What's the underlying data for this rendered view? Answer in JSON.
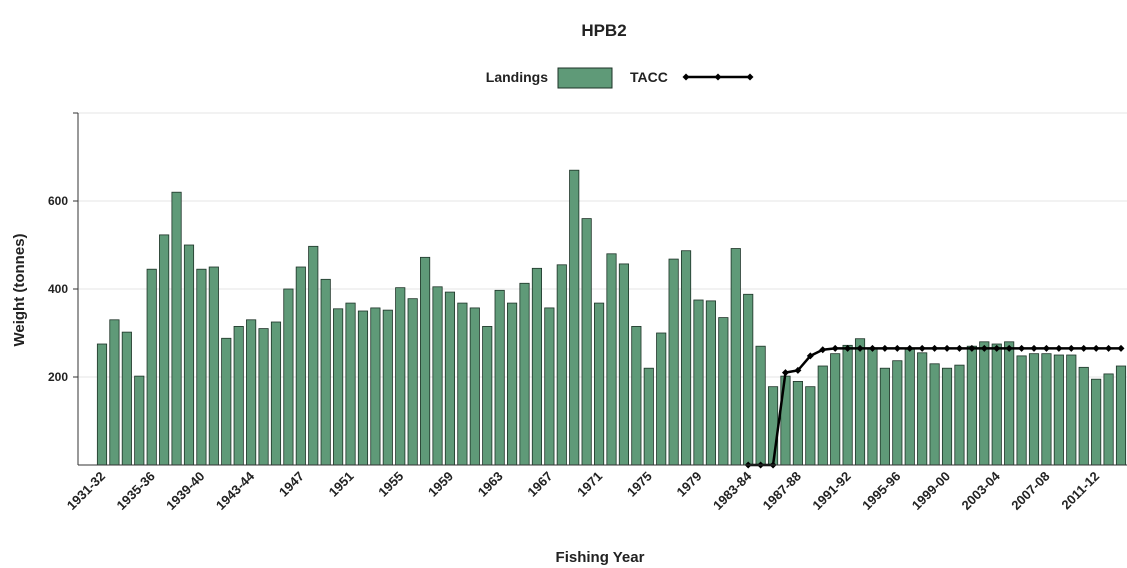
{
  "chart_data": {
    "type": "bar",
    "title": "HPB2",
    "x_label": "Fishing Year",
    "y_label": "Weight (tonnes)",
    "categories": [
      "1931-32",
      null,
      null,
      null,
      "1935-36",
      null,
      null,
      null,
      "1939-40",
      null,
      null,
      null,
      "1943-44",
      null,
      null,
      null,
      "1947",
      null,
      null,
      null,
      "1951",
      null,
      null,
      null,
      "1955",
      null,
      null,
      null,
      "1959",
      null,
      null,
      null,
      "1963",
      null,
      null,
      null,
      "1967",
      null,
      null,
      null,
      "1971",
      null,
      null,
      null,
      "1975",
      null,
      null,
      null,
      "1979",
      null,
      null,
      null,
      "1983-84",
      null,
      null,
      null,
      "1987-88",
      null,
      null,
      null,
      "1991-92",
      null,
      null,
      null,
      "1995-96",
      null,
      null,
      null,
      "1999-00",
      null,
      null,
      null,
      "2003-04",
      null,
      null,
      null,
      "2007-08",
      null,
      null,
      null,
      "2011-12",
      null,
      null
    ],
    "series": [
      {
        "name": "Landings",
        "color": "#5f9a78",
        "values": [
          275,
          330,
          302,
          202,
          445,
          523,
          620,
          500,
          445,
          450,
          288,
          315,
          330,
          310,
          325,
          400,
          450,
          497,
          422,
          355,
          368,
          350,
          357,
          352,
          403,
          378,
          472,
          405,
          393,
          368,
          357,
          315,
          397,
          368,
          413,
          447,
          357,
          455,
          670,
          560,
          368,
          480,
          457,
          315,
          220,
          300,
          468,
          487,
          375,
          373,
          335,
          492,
          388,
          270,
          178,
          202,
          190,
          178,
          225,
          253,
          272,
          287,
          265,
          220,
          237,
          263,
          255,
          230,
          220,
          227,
          270,
          280,
          275,
          280,
          248,
          253,
          253,
          250,
          250,
          222,
          195,
          207,
          225
        ]
      },
      {
        "name": "TACC",
        "color": "#000000",
        "type": "line",
        "values": [
          null,
          null,
          null,
          null,
          null,
          null,
          null,
          null,
          null,
          null,
          null,
          null,
          null,
          null,
          null,
          null,
          null,
          null,
          null,
          null,
          null,
          null,
          null,
          null,
          null,
          null,
          null,
          null,
          null,
          null,
          null,
          null,
          null,
          null,
          null,
          null,
          null,
          null,
          null,
          null,
          null,
          null,
          null,
          null,
          null,
          null,
          null,
          null,
          null,
          null,
          null,
          null,
          0,
          0,
          0,
          210,
          215,
          248,
          262,
          265,
          265,
          265,
          265,
          265,
          265,
          265,
          265,
          265,
          265,
          265,
          265,
          265,
          265,
          265,
          265,
          265,
          265,
          265,
          265,
          265,
          265,
          265,
          265
        ]
      }
    ],
    "ylim": [
      0,
      800
    ],
    "yticks": [
      200,
      400,
      600
    ],
    "grid": true
  }
}
